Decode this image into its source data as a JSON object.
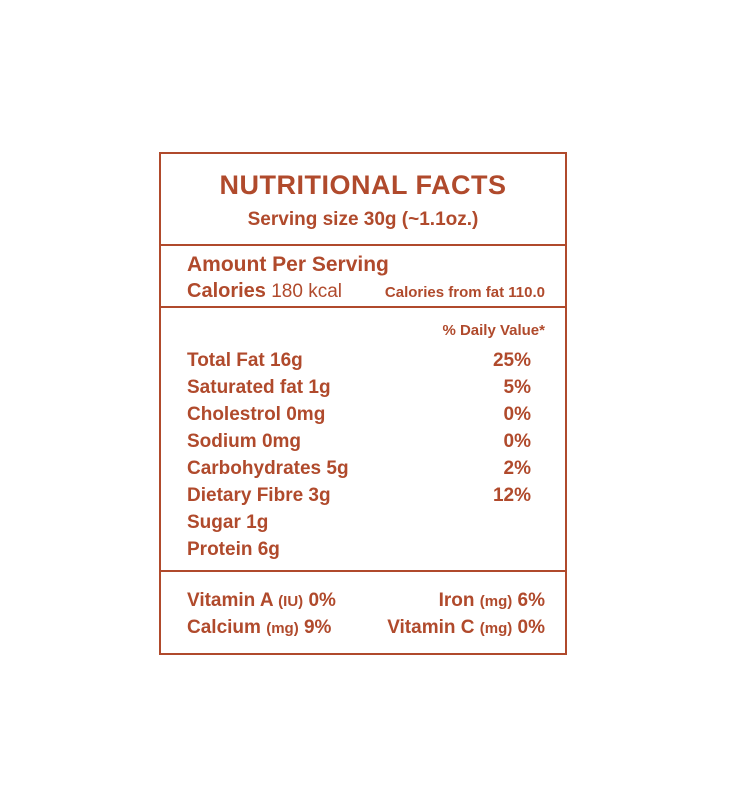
{
  "colors": {
    "accent": "#B04A2C",
    "background": "#FFFFFF"
  },
  "label": {
    "title": "NUTRITIONAL FACTS",
    "serving_size": "Serving size 30g (~1.1oz.)",
    "amount_per_serving": "Amount Per Serving",
    "calories_label": "Calories",
    "calories_value": "180 kcal",
    "calories_from_fat": "Calories from fat 110.0",
    "daily_value_header": "% Daily Value*",
    "nutrients": [
      {
        "label": "Total Fat 16g",
        "daily_value": "25%"
      },
      {
        "label": "Saturated fat 1g",
        "daily_value": "5%"
      },
      {
        "label": "Cholestrol 0mg",
        "daily_value": "0%"
      },
      {
        "label": "Sodium 0mg",
        "daily_value": "0%"
      },
      {
        "label": "Carbohydrates 5g",
        "daily_value": "2%"
      },
      {
        "label": "Dietary Fibre 3g",
        "daily_value": "12%"
      },
      {
        "label": "Sugar 1g",
        "daily_value": ""
      },
      {
        "label": "Protein 6g",
        "daily_value": ""
      }
    ],
    "vitamins": [
      {
        "name": "Vitamin A",
        "unit": "(IU)",
        "value": "0%"
      },
      {
        "name": "Iron",
        "unit": "(mg)",
        "value": "6%"
      },
      {
        "name": "Calcium",
        "unit": "(mg)",
        "value": "9%"
      },
      {
        "name": "Vitamin C",
        "unit": "(mg)",
        "value": "0%"
      }
    ]
  }
}
